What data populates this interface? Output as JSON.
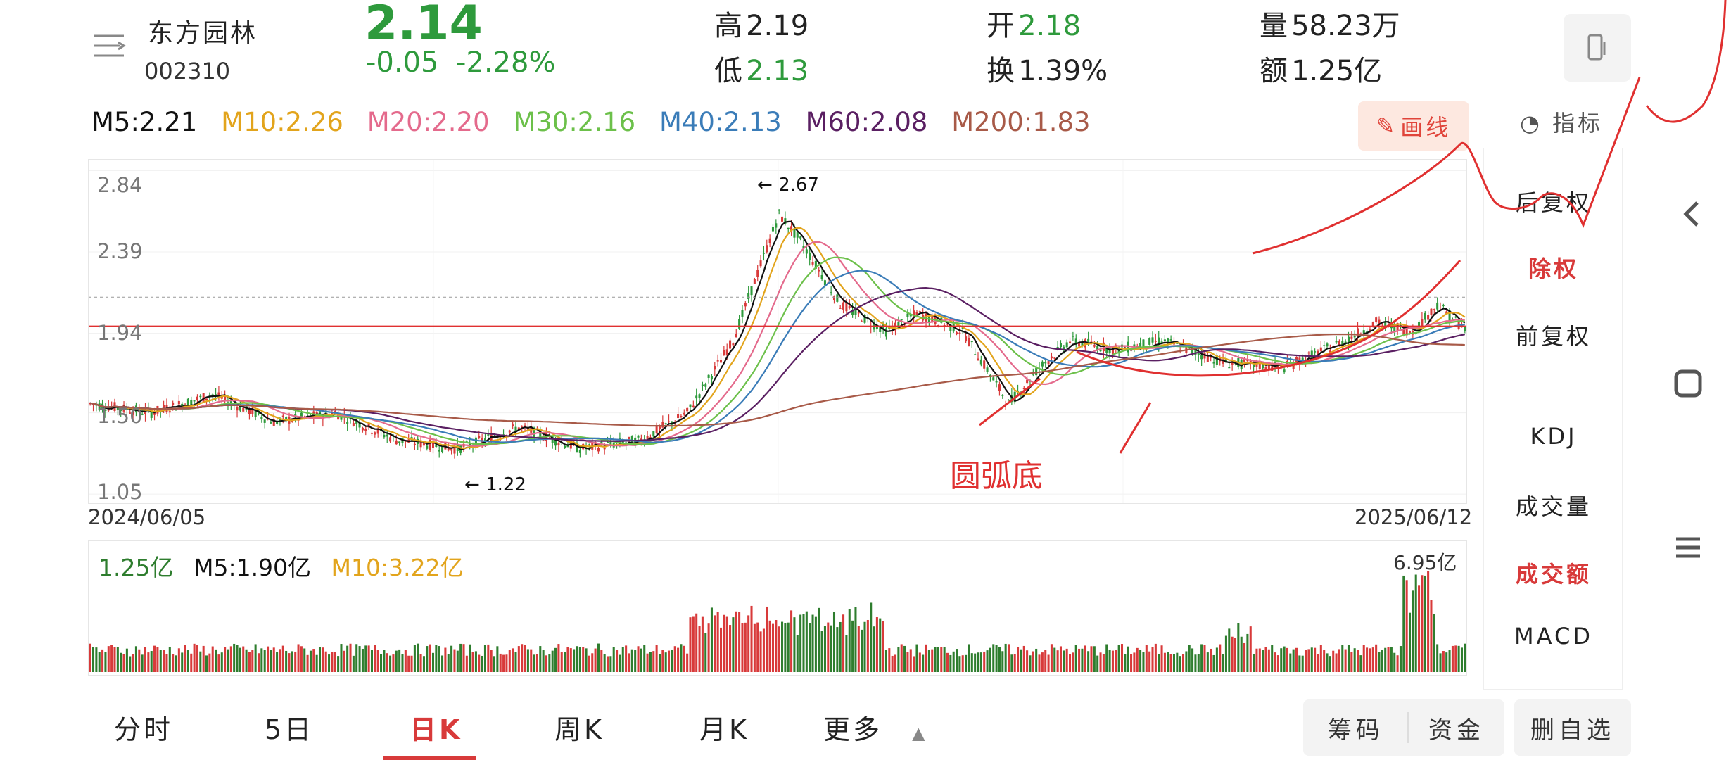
{
  "header": {
    "name": "东方园林",
    "code": "002310",
    "price": "2.14",
    "change": "-0.05",
    "change_pct": "-2.28%",
    "high_label": "高",
    "high": "2.19",
    "low_label": "低",
    "low": "2.13",
    "open_label": "开",
    "open": "2.18",
    "turnover_label": "换",
    "turnover": "1.39%",
    "volume_label": "量",
    "volume": "58.23万",
    "amount_label": "额",
    "amount": "1.25亿"
  },
  "ma": {
    "m5": "M5:2.21",
    "m10": "M10:2.26",
    "m20": "M20:2.20",
    "m30": "M30:2.16",
    "m40": "M40:2.13",
    "m60": "M60:2.08",
    "m200": "M200:1.83"
  },
  "draw_label": "画线",
  "indicator_label": "指标",
  "kchart": {
    "y_ticks": [
      "2.84",
      "2.39",
      "1.94",
      "1.50",
      "1.05"
    ],
    "date_start": "2024/06/05",
    "date_end": "2025/06/12",
    "low_marker": "1.22",
    "high_marker": "2.67",
    "annotation": "圆弧底"
  },
  "volume": {
    "value": "1.25亿",
    "m5": "M5:1.90亿",
    "m10": "M10:3.22亿",
    "max": "6.95亿"
  },
  "side_items": [
    "后复权",
    "除权",
    "前复权",
    "KDJ",
    "成交量",
    "成交额",
    "MACD"
  ],
  "tabs": [
    "分时",
    "5日",
    "日K",
    "周K",
    "月K",
    "更多"
  ],
  "buttons": {
    "chip": "筹码",
    "fund": "资金",
    "remove": "删自选"
  },
  "colors": {
    "up": "#d83a3a",
    "down": "#2e9a3c",
    "m5": "#111111",
    "m10": "#e2a41c",
    "m20": "#e46a8c",
    "m30": "#6cc04a",
    "m40": "#3a7cb8",
    "m60": "#5a1f62",
    "m200": "#a85a48"
  }
}
